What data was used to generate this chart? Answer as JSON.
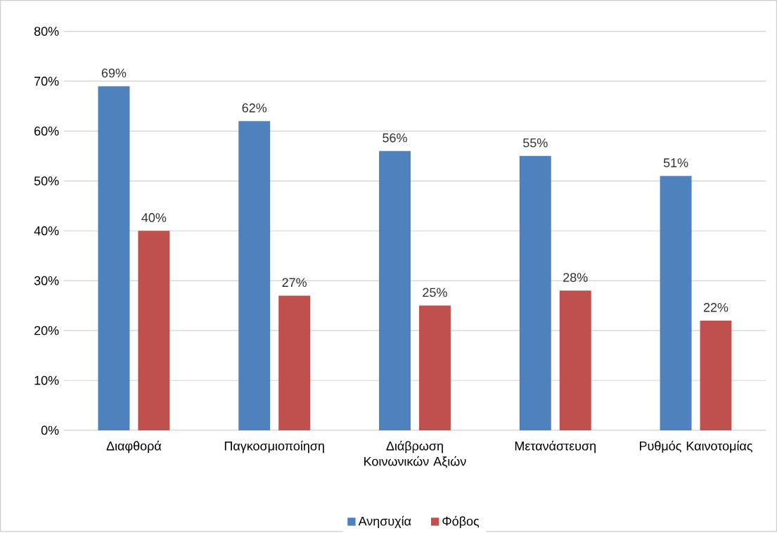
{
  "chart_data": {
    "type": "bar",
    "categories": [
      "Διαφθορά",
      "Παγκοσμιοποίηση",
      "Διάβρωση Κοινωνικών Αξιών",
      "Μετανάστευση",
      "Ρυθμός Καινοτομίας"
    ],
    "series": [
      {
        "name": "Ανησυχία",
        "color": "#4f81bd",
        "values": [
          69,
          62,
          56,
          55,
          51
        ],
        "value_labels": [
          "69%",
          "62%",
          "56%",
          "55%",
          "51%"
        ]
      },
      {
        "name": "Φόβος",
        "color": "#c0504d",
        "values": [
          40,
          27,
          25,
          28,
          22
        ],
        "value_labels": [
          "40%",
          "27%",
          "25%",
          "28%",
          "22%"
        ]
      }
    ],
    "ylim": [
      0,
      80
    ],
    "yticks": [
      {
        "value": 0,
        "label": "0%"
      },
      {
        "value": 10,
        "label": "10%"
      },
      {
        "value": 20,
        "label": "20%"
      },
      {
        "value": 30,
        "label": "30%"
      },
      {
        "value": 40,
        "label": "40%"
      },
      {
        "value": 50,
        "label": "50%"
      },
      {
        "value": 60,
        "label": "60%"
      },
      {
        "value": 70,
        "label": "70%"
      },
      {
        "value": 80,
        "label": "80%"
      }
    ],
    "grid": "y",
    "legend": "bottom"
  }
}
